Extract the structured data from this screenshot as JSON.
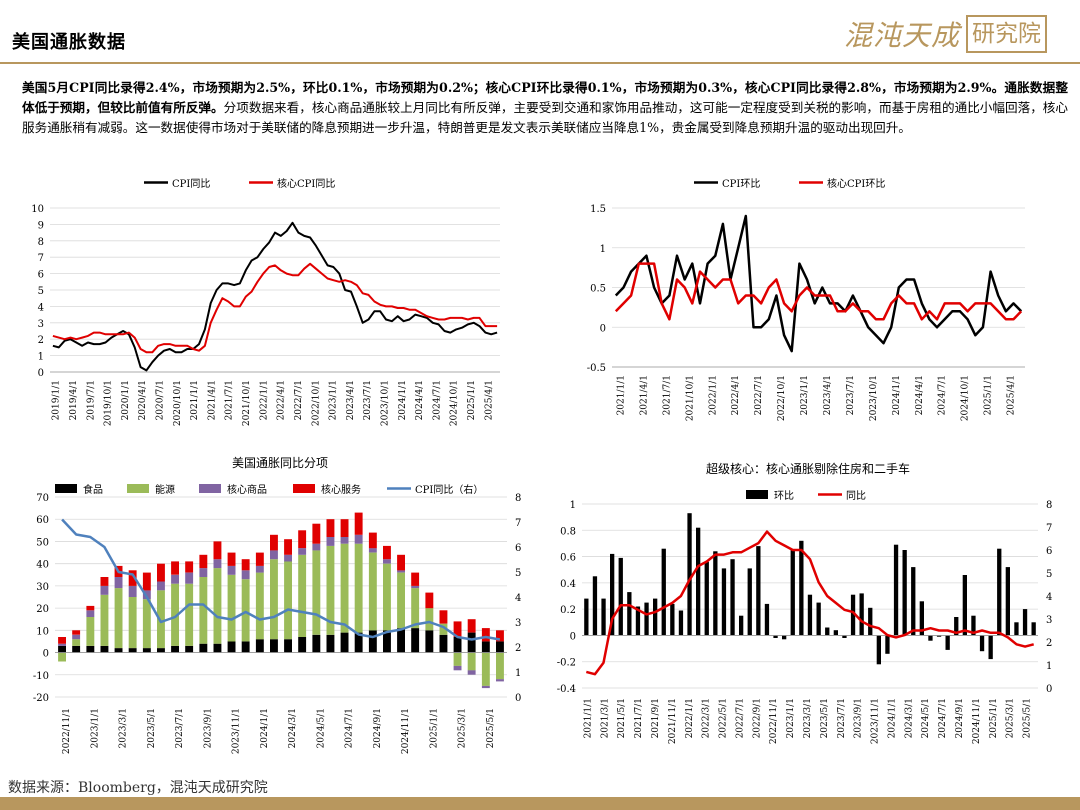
{
  "header": {
    "title": "美国通胀数据",
    "logo_text": "混沌天成",
    "logo_box_text": "研究院"
  },
  "summary": {
    "bold": "美国5月CPI同比录得2.4%，市场预期为2.5%，环比0.1%，市场预期为0.2%；核心CPI环比录得0.1%，市场预期为0.3%，核心CPI同比录得2.8%，市场预期为2.9%。通胀数据整体低于预期，但较比前值有所反弹。",
    "normal": "分项数据来看，核心商品通胀较上月同比有所反弹，主要受到交通和家饰用品推动，这可能一定程度受到关税的影响，而基于房租的通比小幅回落，核心服务通胀稍有减弱。这一数据使得市场对于美联储的降息预期进一步升温，特朗普更是发文表示美联储应当降息1%，贵金属受到降息预期升温的驱动出现回升。"
  },
  "footer": {
    "source": "数据来源：Bloomberg，混沌天成研究院"
  },
  "colors": {
    "gold": "#b8975e",
    "black": "#000000",
    "red": "#e00000",
    "green": "#9bbb59",
    "purple": "#8064a2",
    "blue": "#4f81bd"
  },
  "chart_data": [
    {
      "type": "line",
      "legend": [
        "CPI同比",
        "核心CPI同比"
      ],
      "legend_placement": "top",
      "ylim": [
        0,
        10
      ],
      "yticks": [
        0,
        1,
        2,
        3,
        4,
        5,
        6,
        7,
        8,
        9,
        10
      ],
      "xtick_labels": [
        "2019/1/1",
        "2019/4/1",
        "2019/7/1",
        "2019/10/1",
        "2020/1/1",
        "2020/4/1",
        "2020/7/1",
        "2020/10/1",
        "2021/1/1",
        "2021/4/1",
        "2021/7/1",
        "2021/10/1",
        "2022/1/1",
        "2022/4/1",
        "2022/7/1",
        "2022/10/1",
        "2023/1/1",
        "2023/4/1",
        "2023/7/1",
        "2023/10/1",
        "2024/1/1",
        "2024/4/1",
        "2024/7/1",
        "2024/10/1",
        "2025/1/1",
        "2025/4/1"
      ],
      "grid": true,
      "series": [
        {
          "name": "CPI同比",
          "color": "#000000",
          "values": [
            1.6,
            1.5,
            1.9,
            2.0,
            1.8,
            1.6,
            1.8,
            1.7,
            1.7,
            1.8,
            2.1,
            2.3,
            2.5,
            2.3,
            1.5,
            0.3,
            0.1,
            0.6,
            1.0,
            1.3,
            1.4,
            1.2,
            1.2,
            1.4,
            1.4,
            1.7,
            2.6,
            4.2,
            5.0,
            5.4,
            5.4,
            5.3,
            5.4,
            6.2,
            6.8,
            7.0,
            7.5,
            7.9,
            8.5,
            8.3,
            8.6,
            9.1,
            8.5,
            8.3,
            8.2,
            7.7,
            7.1,
            6.5,
            6.4,
            6.0,
            5.0,
            4.9,
            4.0,
            3.0,
            3.2,
            3.7,
            3.7,
            3.2,
            3.1,
            3.4,
            3.1,
            3.2,
            3.5,
            3.4,
            3.3,
            3.0,
            2.9,
            2.5,
            2.4,
            2.6,
            2.7,
            2.9,
            3.0,
            2.8,
            2.4,
            2.3,
            2.4
          ]
        },
        {
          "name": "核心CPI同比",
          "color": "#e00000",
          "values": [
            2.2,
            2.1,
            2.0,
            2.1,
            2.0,
            2.1,
            2.2,
            2.4,
            2.4,
            2.3,
            2.3,
            2.3,
            2.3,
            2.4,
            2.1,
            1.4,
            1.2,
            1.2,
            1.6,
            1.7,
            1.7,
            1.6,
            1.6,
            1.6,
            1.4,
            1.3,
            1.6,
            3.0,
            3.8,
            4.5,
            4.3,
            4.0,
            4.0,
            4.6,
            4.9,
            5.5,
            6.0,
            6.4,
            6.5,
            6.2,
            6.0,
            5.9,
            5.9,
            6.3,
            6.6,
            6.3,
            6.0,
            5.7,
            5.6,
            5.5,
            5.6,
            5.5,
            5.3,
            4.8,
            4.7,
            4.3,
            4.1,
            4.0,
            4.0,
            3.9,
            3.9,
            3.8,
            3.8,
            3.6,
            3.4,
            3.3,
            3.2,
            3.2,
            3.3,
            3.3,
            3.3,
            3.2,
            3.3,
            3.3,
            2.8,
            2.8,
            2.8
          ]
        }
      ]
    },
    {
      "type": "line",
      "legend": [
        "CPI环比",
        "核心CPI环比"
      ],
      "legend_placement": "top",
      "ylim": [
        -0.5,
        1.5
      ],
      "yticks": [
        -0.5,
        0,
        0.5,
        1,
        1.5
      ],
      "ytick_labels": [
        "-0.5",
        "0",
        "0.5",
        "1",
        "1.5"
      ],
      "xtick_labels": [
        "2021/1/1",
        "2021/4/1",
        "2021/7/1",
        "2021/10/1",
        "2022/1/1",
        "2022/4/1",
        "2022/7/1",
        "2022/10/1",
        "2023/1/1",
        "2023/4/1",
        "2023/7/1",
        "2023/10/1",
        "2024/1/1",
        "2024/4/1",
        "2024/7/1",
        "2024/10/1",
        "2025/1/1",
        "2025/4/1"
      ],
      "grid": true,
      "series": [
        {
          "name": "CPI环比",
          "color": "#000000",
          "values": [
            0.4,
            0.5,
            0.7,
            0.8,
            0.9,
            0.5,
            0.3,
            0.4,
            0.9,
            0.6,
            0.8,
            0.3,
            0.8,
            0.9,
            1.3,
            0.6,
            1.0,
            1.4,
            0.0,
            0.0,
            0.1,
            0.4,
            -0.1,
            -0.3,
            0.8,
            0.6,
            0.3,
            0.5,
            0.3,
            0.3,
            0.2,
            0.4,
            0.2,
            0.0,
            -0.1,
            -0.2,
            0.0,
            0.5,
            0.6,
            0.6,
            0.3,
            0.1,
            0.0,
            0.1,
            0.2,
            0.2,
            0.1,
            -0.1,
            0.0,
            0.7,
            0.4,
            0.2,
            0.3,
            0.2
          ]
        },
        {
          "name": "核心CPI环比",
          "color": "#e00000",
          "values": [
            0.2,
            0.3,
            0.4,
            0.8,
            0.8,
            0.8,
            0.3,
            0.1,
            0.6,
            0.5,
            0.3,
            0.7,
            0.6,
            0.5,
            0.6,
            0.6,
            0.3,
            0.4,
            0.4,
            0.3,
            0.5,
            0.6,
            0.3,
            0.2,
            0.4,
            0.5,
            0.4,
            0.4,
            0.4,
            0.2,
            0.2,
            0.3,
            0.2,
            0.2,
            0.1,
            0.1,
            0.3,
            0.4,
            0.3,
            0.3,
            0.1,
            0.2,
            0.1,
            0.3,
            0.3,
            0.3,
            0.2,
            0.3,
            0.3,
            0.3,
            0.2,
            0.1,
            0.1,
            0.2
          ]
        }
      ]
    },
    {
      "type": "bar",
      "title": "美国通胀同比分项",
      "legend": [
        "食品",
        "能源",
        "核心商品",
        "核心服务",
        "CPI同比（右）"
      ],
      "legend_placement": "top",
      "ylim": [
        -20,
        70
      ],
      "yticks": [
        -20,
        -10,
        0,
        10,
        20,
        30,
        40,
        50,
        60,
        70
      ],
      "y2lim": [
        0,
        8
      ],
      "y2ticks": [
        0,
        1,
        2,
        3,
        4,
        5,
        6,
        7,
        8
      ],
      "xtick_labels": [
        "2022/11/1",
        "2023/1/1",
        "2023/3/1",
        "2023/5/1",
        "2023/7/1",
        "2023/9/1",
        "2023/11/1",
        "2024/1/1",
        "2024/3/1",
        "2024/5/1",
        "2024/7/1",
        "2024/9/1",
        "2024/11/1",
        "2025/1/1",
        "2025/3/1",
        "2025/5/1"
      ],
      "grid": true,
      "categories": 32,
      "series": [
        {
          "name": "食品",
          "color": "#000000",
          "values": [
            3,
            3,
            3,
            3,
            2,
            2,
            2,
            2,
            3,
            3,
            4,
            4,
            5,
            5,
            6,
            6,
            6,
            7,
            8,
            8,
            9,
            9,
            10,
            10,
            11,
            11,
            10,
            8,
            7,
            9,
            5,
            5
          ]
        },
        {
          "name": "能源",
          "color": "#9bbb59",
          "values": [
            -4,
            3,
            13,
            23,
            27,
            23,
            22,
            26,
            28,
            28,
            30,
            34,
            30,
            28,
            30,
            36,
            35,
            37,
            38,
            40,
            40,
            40,
            35,
            30,
            25,
            18,
            10,
            5,
            -6,
            -8,
            -15,
            -12
          ]
        },
        {
          "name": "核心商品",
          "color": "#8064a2",
          "values": [
            1,
            2,
            3,
            4,
            5,
            5,
            4,
            4,
            4,
            5,
            4,
            4,
            4,
            4,
            3,
            4,
            3,
            3,
            3,
            4,
            3,
            4,
            2,
            2,
            1,
            1,
            0,
            0,
            -2,
            -2,
            -1,
            -1
          ]
        },
        {
          "name": "核心服务",
          "color": "#e00000",
          "values": [
            3,
            2,
            2,
            4,
            5,
            7,
            8,
            8,
            6,
            5,
            6,
            8,
            6,
            5,
            6,
            7,
            7,
            8,
            9,
            8,
            8,
            10,
            7,
            6,
            7,
            6,
            7,
            6,
            7,
            6,
            6,
            5
          ]
        },
        {
          "name": "CPI同比（右）",
          "color": "#4f81bd",
          "axis": "right",
          "values": [
            7.1,
            6.5,
            6.4,
            6.0,
            5.0,
            4.9,
            4.0,
            3.0,
            3.2,
            3.7,
            3.7,
            3.2,
            3.1,
            3.4,
            3.1,
            3.2,
            3.5,
            3.4,
            3.3,
            3.0,
            2.9,
            2.5,
            2.4,
            2.6,
            2.7,
            2.9,
            3.0,
            2.8,
            2.4,
            2.3,
            2.4,
            2.3
          ]
        }
      ]
    },
    {
      "type": "bar",
      "title": "超级核心：核心通胀剔除住房和二手车",
      "legend": [
        "环比",
        "同比"
      ],
      "legend_placement": "top",
      "ylim": [
        -0.4,
        1
      ],
      "yticks": [
        -0.4,
        -0.2,
        0,
        0.2,
        0.4,
        0.6,
        0.8,
        1
      ],
      "ytick_labels": [
        "-0.4",
        "-0.2",
        "0",
        "0.2",
        "0.4",
        "0.6",
        "0.8",
        "1"
      ],
      "y2lim": [
        0,
        8
      ],
      "y2ticks": [
        0,
        1,
        2,
        3,
        4,
        5,
        6,
        7,
        8
      ],
      "xtick_labels": [
        "2021/1/1",
        "2021/3/1",
        "2021/5/1",
        "2021/7/1",
        "2021/9/1",
        "2021/11/1",
        "2022/1/1",
        "2022/3/1",
        "2022/5/1",
        "2022/7/1",
        "2022/9/1",
        "2022/11/1",
        "2023/1/1",
        "2023/3/1",
        "2023/5/1",
        "2023/7/1",
        "2023/9/1",
        "2023/11/1",
        "2024/1/1",
        "2024/3/1",
        "2024/5/1",
        "2024/7/1",
        "2024/9/1",
        "2024/11/1",
        "2025/1/1",
        "2025/3/1",
        "2025/5/1"
      ],
      "grid": true,
      "series": [
        {
          "name": "环比",
          "color": "#000000",
          "kind": "bar",
          "values": [
            0.28,
            0.45,
            0.28,
            0.62,
            0.59,
            0.33,
            0.22,
            0.25,
            0.28,
            0.66,
            0.24,
            0.19,
            0.93,
            0.82,
            0.56,
            0.64,
            0.51,
            0.58,
            0.15,
            0.51,
            0.68,
            0.24,
            -0.02,
            -0.03,
            0.65,
            0.72,
            0.31,
            0.25,
            0.06,
            0.04,
            -0.02,
            0.31,
            0.32,
            0.21,
            -0.22,
            -0.14,
            0.69,
            0.65,
            0.52,
            0.26,
            -0.04,
            -0.01,
            -0.11,
            0.14,
            0.46,
            0.15,
            -0.12,
            -0.18,
            0.66,
            0.52,
            0.1,
            0.2,
            0.1
          ]
        },
        {
          "name": "同比",
          "color": "#e00000",
          "kind": "line",
          "axis": "right",
          "values": [
            0.7,
            0.6,
            1.1,
            3.0,
            3.6,
            3.6,
            3.4,
            3.2,
            3.3,
            3.5,
            3.7,
            4.0,
            4.7,
            5.3,
            5.5,
            5.8,
            5.8,
            5.9,
            5.9,
            6.1,
            6.3,
            6.8,
            6.4,
            6.2,
            6.0,
            6.0,
            5.6,
            4.6,
            4.0,
            3.7,
            3.4,
            3.3,
            2.9,
            2.7,
            2.6,
            2.3,
            2.2,
            2.3,
            2.5,
            2.5,
            2.6,
            2.5,
            2.5,
            2.4,
            2.5,
            2.4,
            2.5,
            2.4,
            2.4,
            2.2,
            1.9,
            1.8,
            1.9
          ]
        }
      ]
    }
  ]
}
